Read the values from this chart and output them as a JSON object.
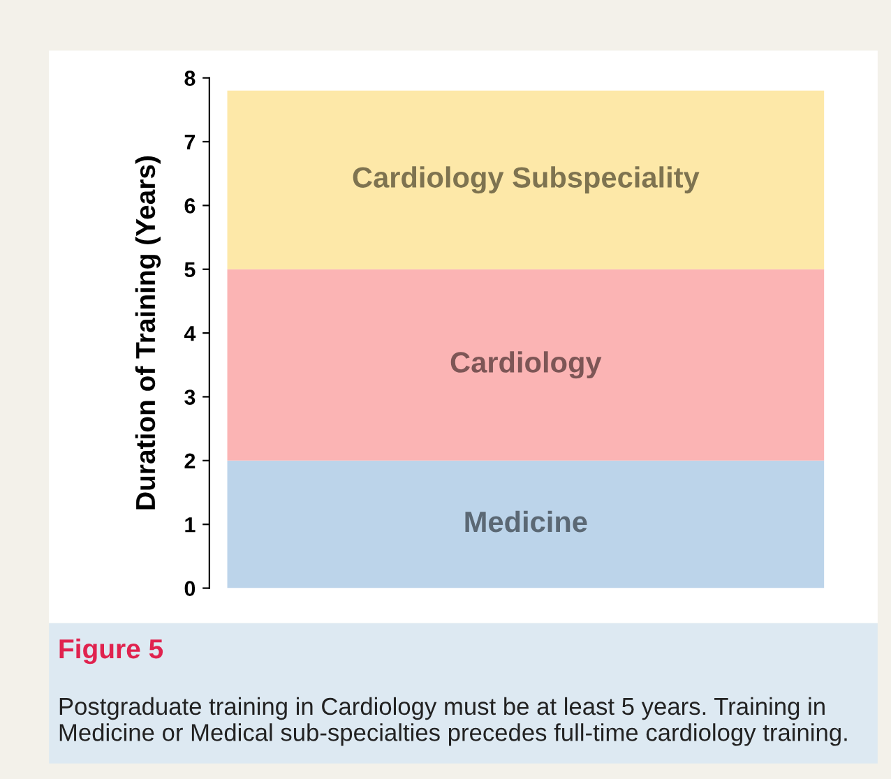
{
  "chart_data": {
    "type": "bar",
    "stacked": true,
    "categories": [
      null
    ],
    "series": [
      {
        "name": "Medicine",
        "color": "#bcd4ea",
        "values": [
          2
        ]
      },
      {
        "name": "Cardiology",
        "color": "#fbb4b4",
        "values": [
          3
        ]
      },
      {
        "name": "Cardiology Subspeciality",
        "color": "#fde8a8",
        "values": [
          2.8
        ]
      }
    ],
    "ylabel": "Duration of Training (Years)",
    "ylim": [
      0,
      8
    ],
    "yticks": [
      0,
      1,
      2,
      3,
      4,
      5,
      6,
      7,
      8
    ],
    "tick_labels": "y",
    "grid": false,
    "legend": false,
    "annotations": [
      "Figure 5",
      "Postgraduate training in Cardiology must be at least 5 years. Training in Medicine or Medical sub-specialties precedes full-time cardiology training."
    ]
  }
}
